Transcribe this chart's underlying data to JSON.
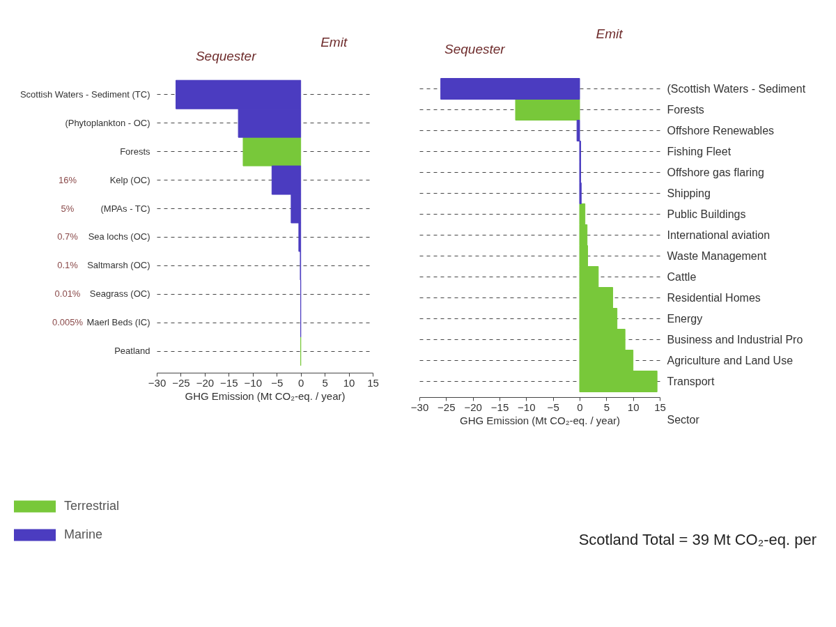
{
  "chart_data": [
    {
      "type": "bar",
      "orientation": "horizontal",
      "categories": [
        "Scottish Waters - Sediment (TC)",
        "(Phytoplankton - OC)",
        "Forests",
        "Kelp (OC)",
        "(MPAs - TC)",
        "Sea lochs (OC)",
        "Saltmarsh (OC)",
        "Seagrass (OC)",
        "Maerl Beds (IC)",
        "Peatland"
      ],
      "series": [
        {
          "name": "Terrestrial",
          "color": "#78c83a",
          "values": [
            null,
            null,
            -12,
            null,
            null,
            null,
            null,
            null,
            null,
            0
          ]
        },
        {
          "name": "Marine",
          "color": "#4b3cc0",
          "values": [
            -26,
            -13,
            null,
            -6,
            -2,
            -0.4,
            -0.1,
            0,
            0,
            null
          ]
        }
      ],
      "xlabel": "GHG Emission (Mt CO₂-eq. / year)",
      "xlim": [
        -30,
        15
      ],
      "xticks": [
        -30,
        -25,
        -20,
        -15,
        -10,
        -5,
        0,
        5,
        10,
        15
      ],
      "grid": "y",
      "legend": "bottom left",
      "annotations": [
        "Sequester",
        "Emit",
        "16%",
        "5%",
        "0.7%",
        "0.1%",
        "0.01%",
        "0.005%"
      ]
    },
    {
      "type": "bar",
      "orientation": "horizontal",
      "categories": [
        "(Scottish Waters - Sediment",
        "Forests",
        "Offshore Renewables",
        "Fishing Fleet",
        "Offshore gas flaring",
        "Shipping",
        "Public Buildings",
        "International aviation",
        "Waste Management",
        "Cattle",
        "Residential Homes",
        "Energy",
        "Business and Industrial Pro",
        "Agriculture and Land Use",
        "Transport"
      ],
      "series": [
        {
          "color": "#78c83a",
          "values": [
            null,
            -12,
            null,
            null,
            null,
            null,
            1.0,
            1.4,
            1.5,
            3.5,
            6.2,
            7.0,
            8.5,
            10.0,
            14.5
          ]
        },
        {
          "color": "#4b3cc0",
          "values": [
            -26,
            null,
            -0.5,
            0.2,
            0.2,
            0.3,
            null,
            null,
            null,
            null,
            null,
            null,
            null,
            null,
            null
          ]
        }
      ],
      "xlabel": "GHG Emission (Mt CO₂-eq. / year)",
      "ylabel": "Sector",
      "xlim": [
        -30,
        15
      ],
      "xticks": [
        -30,
        -25,
        -20,
        -15,
        -10,
        -5,
        0,
        5,
        10,
        15
      ],
      "grid": "y",
      "annotations": [
        "Sequester",
        "Emit",
        "Scotland Total = 39 Mt CO₂-eq. per"
      ]
    }
  ]
}
